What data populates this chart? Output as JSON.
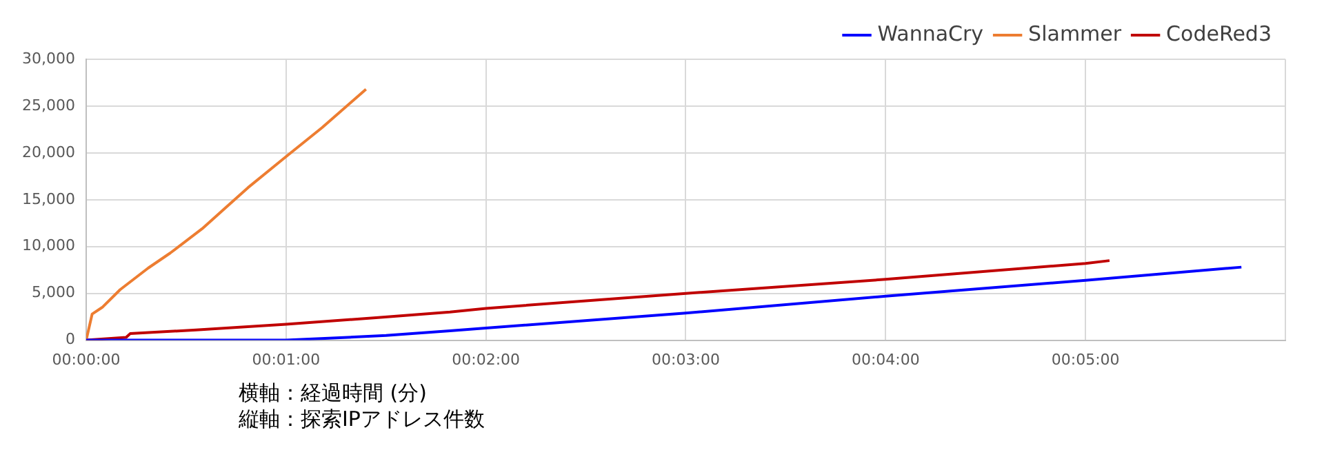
{
  "chart_data": {
    "type": "line",
    "annotations": [
      "横軸：経過時間 (分)",
      "縦軸：探索IPアドレス件数"
    ],
    "series": [
      {
        "name": "WannaCry",
        "color": "#0000ff",
        "x": [
          0,
          1.0,
          1.5,
          1.82,
          2.0,
          3.0,
          4.0,
          5.0,
          5.78
        ],
        "values": [
          0,
          0,
          500,
          1000,
          1300,
          2900,
          4700,
          6400,
          7800
        ]
      },
      {
        "name": "Slammer",
        "color": "#ed7d31",
        "x": [
          0,
          0.03,
          0.08,
          0.17,
          0.31,
          0.42,
          0.58,
          0.7,
          0.81,
          1.0,
          1.18,
          1.4
        ],
        "values": [
          0,
          2800,
          3500,
          5400,
          7700,
          9300,
          11900,
          14200,
          16300,
          19600,
          22700,
          26800
        ]
      },
      {
        "name": "CodeRed3",
        "color": "#c00000",
        "x": [
          0,
          0.2,
          0.22,
          0.55,
          1.0,
          1.45,
          1.82,
          2.0,
          3.0,
          4.0,
          5.0,
          5.12
        ],
        "values": [
          0,
          300,
          700,
          1100,
          1700,
          2400,
          3000,
          3400,
          5000,
          6500,
          8200,
          8500
        ]
      }
    ],
    "xlim": [
      0,
      6
    ],
    "xticks": [
      {
        "value": 0,
        "label": "00:00:00"
      },
      {
        "value": 1,
        "label": "00:01:00"
      },
      {
        "value": 2,
        "label": "00:02:00"
      },
      {
        "value": 3,
        "label": "00:03:00"
      },
      {
        "value": 4,
        "label": "00:04:00"
      },
      {
        "value": 5,
        "label": "00:05:00"
      },
      {
        "value": 6,
        "label": null
      }
    ],
    "ylim": [
      0,
      30000
    ],
    "yticks": [
      0,
      {
        "value": 5000,
        "label": "5,000"
      },
      {
        "value": 10000,
        "label": "10,000"
      },
      {
        "value": 15000,
        "label": "15,000"
      },
      {
        "value": 20000,
        "label": "20,000"
      },
      {
        "value": 25000,
        "label": "25,000"
      },
      {
        "value": 30000,
        "label": "30,000"
      }
    ],
    "grid": true,
    "legend": "top right",
    "marker": "none"
  }
}
